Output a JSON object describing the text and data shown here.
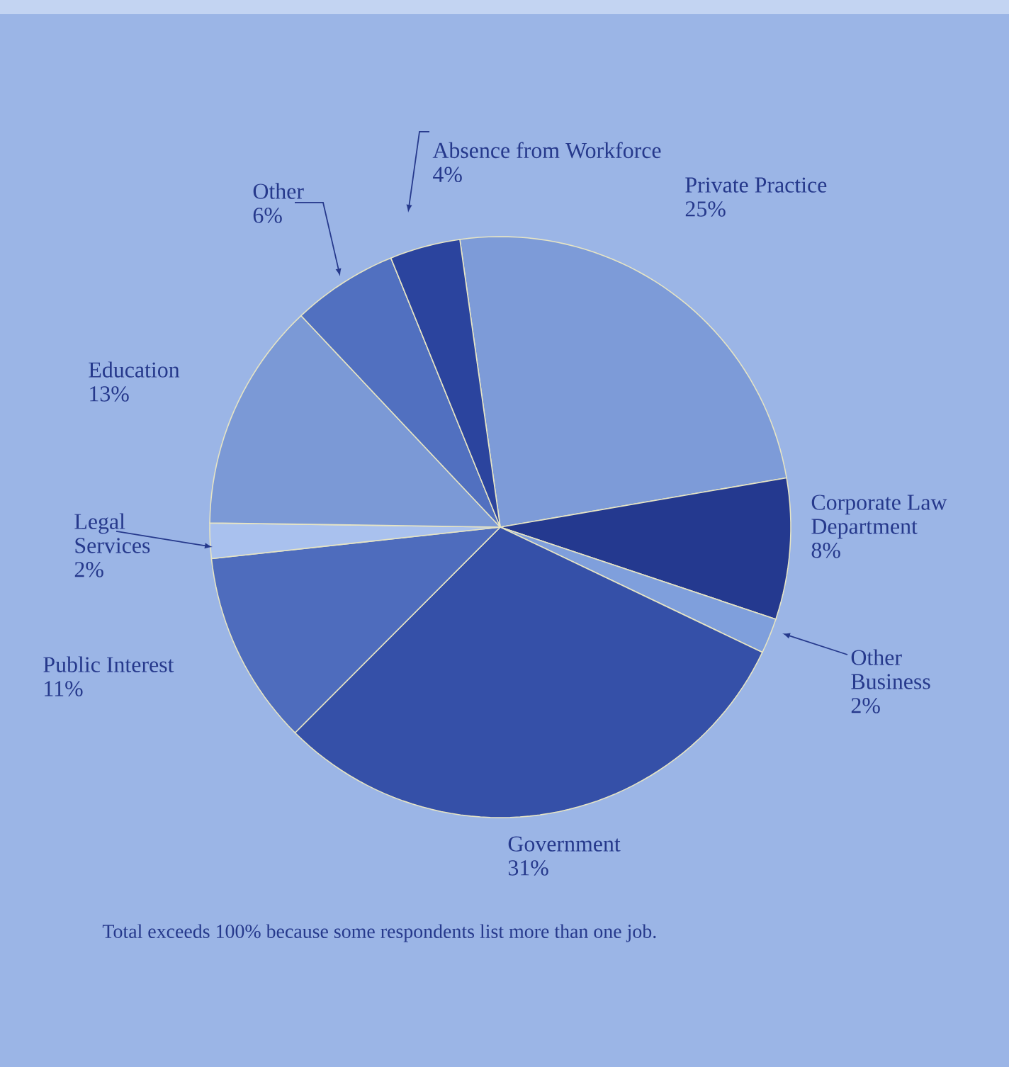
{
  "chart_data": {
    "type": "pie",
    "categories": [
      "Private Practice",
      "Corporate Law Department",
      "Other Business",
      "Government",
      "Public Interest",
      "Legal Services",
      "Education",
      "Other",
      "Absence from Workforce"
    ],
    "values": [
      25,
      8,
      2,
      31,
      11,
      2,
      13,
      6,
      4
    ],
    "value_labels": [
      "25%",
      "8%",
      "2%",
      "31%",
      "11%",
      "2%",
      "13%",
      "6%",
      "4%"
    ],
    "colors": [
      "#7d9bd8",
      "#24398f",
      "#7f9fdc",
      "#3550a8",
      "#4e6cbd",
      "#a9c1ee",
      "#7b99d6",
      "#5170c0",
      "#2b449e"
    ],
    "annotations": [
      "Total exceeds 100% because some respondents list more than one job."
    ]
  }
}
